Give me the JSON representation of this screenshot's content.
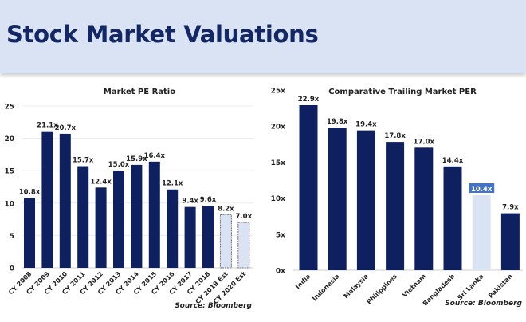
{
  "page": {
    "title": "Stock Market Valuations"
  },
  "colors": {
    "header_bg": "#dae3f3",
    "bar": "#0f2060",
    "bar_highlight": "#dae3f3",
    "label_highlight_bg": "#4472c4"
  },
  "chart_data": [
    {
      "type": "bar",
      "title": "Market PE Ratio",
      "categories": [
        "CY 2008",
        "CY 2009",
        "CY 2010",
        "CY 2011",
        "CY 2012",
        "CY 2013",
        "CY 2014",
        "CY 2015",
        "CY 2016",
        "CY 2017",
        "CY 2018",
        "CY 2019 Est",
        "CY 2020 Est"
      ],
      "values": [
        10.8,
        21.1,
        20.7,
        15.7,
        12.4,
        15.0,
        15.9,
        16.4,
        12.1,
        9.4,
        9.6,
        8.2,
        7.0
      ],
      "data_labels": [
        "10.8x",
        "21.1x",
        "20.7x",
        "15.7x",
        "12.4x",
        "15.0x",
        "15.9x",
        "16.4x",
        "12.1x",
        "9.4x",
        "9.6x",
        "8.2x",
        "7.0x"
      ],
      "estimated": [
        false,
        false,
        false,
        false,
        false,
        false,
        false,
        false,
        false,
        false,
        false,
        true,
        true
      ],
      "yticks": [
        "0",
        "5",
        "10",
        "15",
        "20",
        "25"
      ],
      "ylim": [
        0,
        25
      ],
      "grid": true,
      "source": "Source: Bloomberg",
      "xlabel": "",
      "ylabel": ""
    },
    {
      "type": "bar",
      "title": "Comparative Trailing Market PER",
      "categories": [
        "India",
        "Indonesia",
        "Malaysia",
        "Philippines",
        "Vietnam",
        "Bangladesh",
        "Sri Lanka",
        "Pakistan"
      ],
      "values": [
        22.9,
        19.8,
        19.4,
        17.8,
        17.0,
        14.4,
        10.4,
        7.9
      ],
      "data_labels": [
        "22.9x",
        "19.8x",
        "19.4x",
        "17.8x",
        "17.0x",
        "14.4x",
        "10.4x",
        "7.9x"
      ],
      "highlighted": [
        false,
        false,
        false,
        false,
        false,
        false,
        true,
        false
      ],
      "yticks": [
        "0x",
        "5x",
        "10x",
        "15x",
        "20x",
        "25x"
      ],
      "ylim": [
        0,
        25
      ],
      "grid": false,
      "source": "Source: Bloomberg",
      "xlabel": "",
      "ylabel": ""
    }
  ]
}
